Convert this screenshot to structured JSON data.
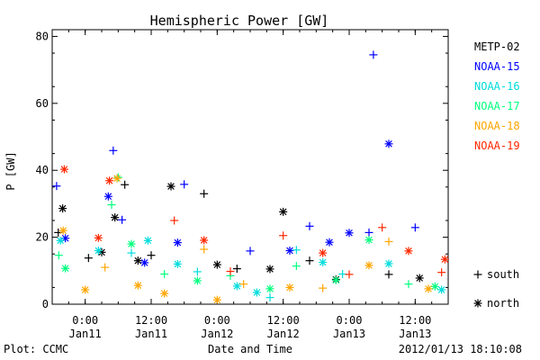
{
  "chart_data": {
    "type": "scatter",
    "title": "Hemispheric Power [GW]",
    "xlabel": "Date and Time",
    "ylabel": "P [GW]",
    "ylim": [
      0,
      82
    ],
    "y_ticks": [
      0,
      20,
      40,
      60,
      80
    ],
    "x_ticks": [
      {
        "time": "2012-01-11 00:00",
        "label1": "0:00",
        "label2": "Jan11"
      },
      {
        "time": "2012-01-11 12:00",
        "label1": "12:00",
        "label2": "Jan11"
      },
      {
        "time": "2012-01-12 00:00",
        "label1": "0:00",
        "label2": "Jan12"
      },
      {
        "time": "2012-01-12 12:00",
        "label1": "12:00",
        "label2": "Jan12"
      },
      {
        "time": "2012-01-13 00:00",
        "label1": "0:00",
        "label2": "Jan13"
      },
      {
        "time": "2012-01-13 12:00",
        "label1": "12:00",
        "label2": "Jan13"
      }
    ],
    "xlim": [
      "2012-01-10 18:00",
      "2012-01-13 18:00"
    ],
    "legend_position": "right",
    "marker_legend": [
      {
        "marker": "+",
        "label": "south"
      },
      {
        "marker": "*",
        "label": "north"
      }
    ],
    "series": [
      {
        "name": "METP-02",
        "color": "#000000",
        "points": [
          {
            "x": "2012-01-10 19:06",
            "y": 21.4,
            "m": "+"
          },
          {
            "x": "2012-01-10 19:54",
            "y": 28.6,
            "m": "*"
          },
          {
            "x": "2012-01-11 00:36",
            "y": 13.8,
            "m": "+"
          },
          {
            "x": "2012-01-11 03:00",
            "y": 15.5,
            "m": "*"
          },
          {
            "x": "2012-01-11 05:24",
            "y": 25.9,
            "m": "*"
          },
          {
            "x": "2012-01-11 07:12",
            "y": 35.7,
            "m": "+"
          },
          {
            "x": "2012-01-11 09:36",
            "y": 13.0,
            "m": "*"
          },
          {
            "x": "2012-01-11 12:00",
            "y": 14.6,
            "m": "+"
          },
          {
            "x": "2012-01-11 15:36",
            "y": 35.2,
            "m": "*"
          },
          {
            "x": "2012-01-11 21:36",
            "y": 33.0,
            "m": "+"
          },
          {
            "x": "2012-01-12 00:00",
            "y": 11.8,
            "m": "*"
          },
          {
            "x": "2012-01-12 03:36",
            "y": 10.6,
            "m": "+"
          },
          {
            "x": "2012-01-12 09:36",
            "y": 10.5,
            "m": "*"
          },
          {
            "x": "2012-01-12 12:00",
            "y": 27.6,
            "m": "*"
          },
          {
            "x": "2012-01-12 16:48",
            "y": 13.0,
            "m": "+"
          },
          {
            "x": "2012-01-12 21:36",
            "y": 7.4,
            "m": "*"
          },
          {
            "x": "2012-01-13 07:12",
            "y": 8.9,
            "m": "+"
          },
          {
            "x": "2012-01-13 12:48",
            "y": 7.8,
            "m": "*"
          }
        ]
      },
      {
        "name": "NOAA-15",
        "color": "#0000ff",
        "points": [
          {
            "x": "2012-01-10 18:48",
            "y": 35.3,
            "m": "+"
          },
          {
            "x": "2012-01-10 20:24",
            "y": 19.7,
            "m": "*"
          },
          {
            "x": "2012-01-11 04:12",
            "y": 32.2,
            "m": "*"
          },
          {
            "x": "2012-01-11 05:06",
            "y": 45.9,
            "m": "+"
          },
          {
            "x": "2012-01-11 06:42",
            "y": 25.2,
            "m": "+"
          },
          {
            "x": "2012-01-11 10:48",
            "y": 12.4,
            "m": "*"
          },
          {
            "x": "2012-01-11 16:48",
            "y": 18.4,
            "m": "*"
          },
          {
            "x": "2012-01-11 18:00",
            "y": 35.8,
            "m": "+"
          },
          {
            "x": "2012-01-12 06:00",
            "y": 15.9,
            "m": "+"
          },
          {
            "x": "2012-01-12 13:12",
            "y": 16.0,
            "m": "*"
          },
          {
            "x": "2012-01-12 16:48",
            "y": 23.3,
            "m": "+"
          },
          {
            "x": "2012-01-12 20:24",
            "y": 18.5,
            "m": "*"
          },
          {
            "x": "2012-01-13 00:00",
            "y": 21.3,
            "m": "*"
          },
          {
            "x": "2012-01-13 03:36",
            "y": 21.4,
            "m": "+"
          },
          {
            "x": "2012-01-13 04:24",
            "y": 74.5,
            "m": "+"
          },
          {
            "x": "2012-01-13 07:12",
            "y": 47.9,
            "m": "*"
          },
          {
            "x": "2012-01-13 12:00",
            "y": 22.9,
            "m": "+"
          }
        ]
      },
      {
        "name": "NOAA-16",
        "color": "#00dcdc",
        "points": [
          {
            "x": "2012-01-10 19:30",
            "y": 19.0,
            "m": "*"
          },
          {
            "x": "2012-01-11 02:24",
            "y": 16.0,
            "m": "*"
          },
          {
            "x": "2012-01-11 08:24",
            "y": 15.3,
            "m": "+"
          },
          {
            "x": "2012-01-11 11:24",
            "y": 19.0,
            "m": "*"
          },
          {
            "x": "2012-01-11 16:48",
            "y": 12.0,
            "m": "*"
          },
          {
            "x": "2012-01-11 20:24",
            "y": 9.7,
            "m": "+"
          },
          {
            "x": "2012-01-12 03:36",
            "y": 5.4,
            "m": "*"
          },
          {
            "x": "2012-01-12 07:12",
            "y": 3.5,
            "m": "*"
          },
          {
            "x": "2012-01-12 09:36",
            "y": 2.0,
            "m": "+"
          },
          {
            "x": "2012-01-12 14:24",
            "y": 16.2,
            "m": "+"
          },
          {
            "x": "2012-01-12 19:12",
            "y": 12.5,
            "m": "*"
          },
          {
            "x": "2012-01-12 22:48",
            "y": 9.0,
            "m": "+"
          },
          {
            "x": "2012-01-13 07:12",
            "y": 12.1,
            "m": "*"
          },
          {
            "x": "2012-01-13 16:48",
            "y": 4.3,
            "m": "*"
          }
        ]
      },
      {
        "name": "NOAA-17",
        "color": "#00ff7f",
        "points": [
          {
            "x": "2012-01-10 19:12",
            "y": 14.6,
            "m": "+"
          },
          {
            "x": "2012-01-10 20:24",
            "y": 10.7,
            "m": "*"
          },
          {
            "x": "2012-01-11 04:48",
            "y": 29.7,
            "m": "+"
          },
          {
            "x": "2012-01-11 06:00",
            "y": 37.9,
            "m": "+"
          },
          {
            "x": "2012-01-11 08:24",
            "y": 18.0,
            "m": "*"
          },
          {
            "x": "2012-01-11 14:24",
            "y": 9.0,
            "m": "+"
          },
          {
            "x": "2012-01-11 20:24",
            "y": 7.0,
            "m": "*"
          },
          {
            "x": "2012-01-12 02:24",
            "y": 8.5,
            "m": "+"
          },
          {
            "x": "2012-01-12 09:36",
            "y": 4.6,
            "m": "*"
          },
          {
            "x": "2012-01-12 14:24",
            "y": 11.4,
            "m": "+"
          },
          {
            "x": "2012-01-12 21:36",
            "y": 7.2,
            "m": "*"
          },
          {
            "x": "2012-01-13 03:36",
            "y": 19.2,
            "m": "*"
          },
          {
            "x": "2012-01-13 10:48",
            "y": 6.0,
            "m": "+"
          },
          {
            "x": "2012-01-13 15:36",
            "y": 5.3,
            "m": "*"
          }
        ]
      },
      {
        "name": "NOAA-18",
        "color": "#ffa500",
        "points": [
          {
            "x": "2012-01-10 20:00",
            "y": 22.0,
            "m": "*"
          },
          {
            "x": "2012-01-11 00:00",
            "y": 4.3,
            "m": "*"
          },
          {
            "x": "2012-01-11 03:36",
            "y": 11.0,
            "m": "+"
          },
          {
            "x": "2012-01-11 05:48",
            "y": 37.6,
            "m": "*"
          },
          {
            "x": "2012-01-11 09:36",
            "y": 5.6,
            "m": "*"
          },
          {
            "x": "2012-01-11 14:24",
            "y": 3.2,
            "m": "*"
          },
          {
            "x": "2012-01-11 21:36",
            "y": 16.4,
            "m": "+"
          },
          {
            "x": "2012-01-12 00:00",
            "y": 1.3,
            "m": "*"
          },
          {
            "x": "2012-01-12 04:48",
            "y": 6.0,
            "m": "+"
          },
          {
            "x": "2012-01-12 13:12",
            "y": 5.0,
            "m": "*"
          },
          {
            "x": "2012-01-12 19:12",
            "y": 4.8,
            "m": "+"
          },
          {
            "x": "2012-01-13 03:36",
            "y": 11.6,
            "m": "*"
          },
          {
            "x": "2012-01-13 07:12",
            "y": 18.7,
            "m": "+"
          },
          {
            "x": "2012-01-13 14:24",
            "y": 4.6,
            "m": "*"
          }
        ]
      },
      {
        "name": "NOAA-19",
        "color": "#ff2800",
        "points": [
          {
            "x": "2012-01-10 20:12",
            "y": 40.3,
            "m": "*"
          },
          {
            "x": "2012-01-11 02:24",
            "y": 19.8,
            "m": "*"
          },
          {
            "x": "2012-01-11 04:24",
            "y": 36.9,
            "m": "*"
          },
          {
            "x": "2012-01-11 16:12",
            "y": 25.0,
            "m": "+"
          },
          {
            "x": "2012-01-11 21:36",
            "y": 19.1,
            "m": "*"
          },
          {
            "x": "2012-01-12 02:24",
            "y": 9.8,
            "m": "+"
          },
          {
            "x": "2012-01-12 12:00",
            "y": 20.5,
            "m": "+"
          },
          {
            "x": "2012-01-12 19:12",
            "y": 15.3,
            "m": "*"
          },
          {
            "x": "2012-01-13 00:00",
            "y": 8.9,
            "m": "+"
          },
          {
            "x": "2012-01-13 06:00",
            "y": 22.9,
            "m": "+"
          },
          {
            "x": "2012-01-13 10:48",
            "y": 15.9,
            "m": "*"
          },
          {
            "x": "2012-01-13 16:48",
            "y": 9.5,
            "m": "+"
          },
          {
            "x": "2012-01-13 17:24",
            "y": 13.4,
            "m": "*"
          }
        ]
      }
    ]
  },
  "footer": {
    "left": "Plot: CCMC",
    "right": "2012/01/13 18:10:08"
  }
}
